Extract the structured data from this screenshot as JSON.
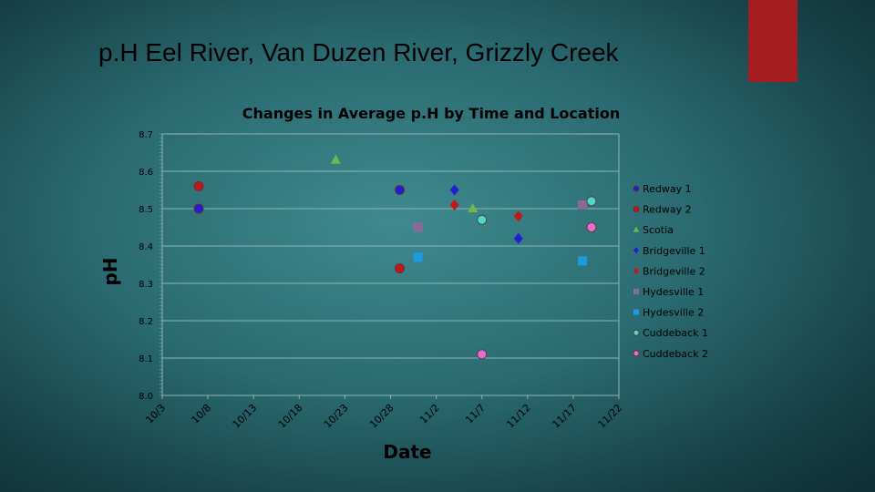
{
  "slide": {
    "title": "p.H Eel River, Van Duzen River, Grizzly Creek",
    "accent_color": "#a51d1f"
  },
  "chart_data": {
    "type": "scatter",
    "title": "Changes in Average p.H by Time and Location",
    "xlabel": "Date",
    "ylabel": "pH",
    "x_ticks": [
      "10/3",
      "10/8",
      "10/13",
      "10/18",
      "10/23",
      "10/28",
      "11/2",
      "11/7",
      "11/12",
      "11/17",
      "11/22"
    ],
    "x_range_days": [
      0,
      50
    ],
    "ylim": [
      8.0,
      8.7
    ],
    "y_ticks": [
      "8.0",
      "8.1",
      "8.2",
      "8.3",
      "8.4",
      "8.5",
      "8.6",
      "8.7"
    ],
    "grid": "horizontal",
    "legend_position": "right",
    "series": [
      {
        "name": "Redway 1",
        "marker": "circle",
        "color": "#1f1fd0",
        "points": [
          {
            "x": "10/7",
            "y": 8.5
          },
          {
            "x": "10/29",
            "y": 8.55
          }
        ]
      },
      {
        "name": "Redway 2",
        "marker": "circle",
        "color": "#c01818",
        "points": [
          {
            "x": "10/7",
            "y": 8.56
          },
          {
            "x": "10/29",
            "y": 8.34
          }
        ]
      },
      {
        "name": "Scotia",
        "marker": "triangle",
        "color": "#72b84e",
        "points": [
          {
            "x": "10/22",
            "y": 8.63
          },
          {
            "x": "11/6",
            "y": 8.5
          }
        ]
      },
      {
        "name": "Bridgeville 1",
        "marker": "diamond",
        "color": "#1f1fd0",
        "points": [
          {
            "x": "11/4",
            "y": 8.55
          },
          {
            "x": "11/11",
            "y": 8.42
          }
        ]
      },
      {
        "name": "Bridgeville 2",
        "marker": "diamond",
        "color": "#c01818",
        "points": [
          {
            "x": "11/4",
            "y": 8.51
          },
          {
            "x": "11/11",
            "y": 8.48
          }
        ]
      },
      {
        "name": "Hydesville 1",
        "marker": "square",
        "color": "#8a6a9a",
        "points": [
          {
            "x": "10/31",
            "y": 8.45
          },
          {
            "x": "11/18",
            "y": 8.51
          }
        ]
      },
      {
        "name": "Hydesville 2",
        "marker": "square",
        "color": "#1e9ae0",
        "points": [
          {
            "x": "10/31",
            "y": 8.37
          },
          {
            "x": "11/18",
            "y": 8.36
          }
        ]
      },
      {
        "name": "Cuddeback 1",
        "marker": "circle",
        "color": "#40e0c8",
        "points": [
          {
            "x": "11/7",
            "y": 8.47
          },
          {
            "x": "11/19",
            "y": 8.52
          }
        ]
      },
      {
        "name": "Cuddeback 2",
        "marker": "circle",
        "color": "#e070d8",
        "points": [
          {
            "x": "11/7",
            "y": 8.11
          },
          {
            "x": "11/19",
            "y": 8.45
          }
        ]
      }
    ]
  }
}
